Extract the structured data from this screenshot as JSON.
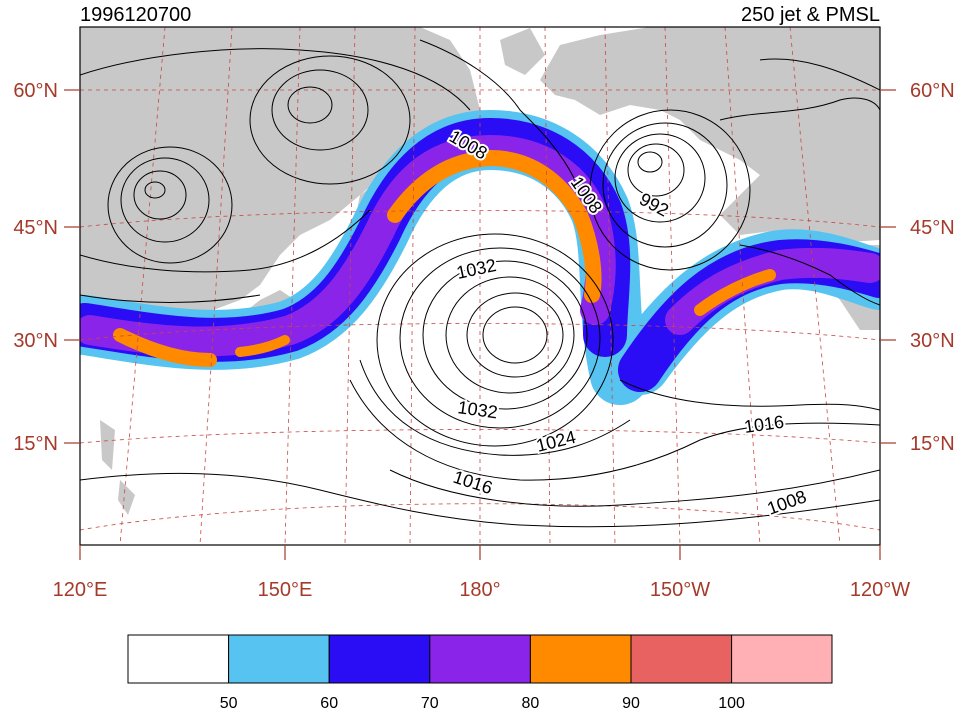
{
  "title_left": "1996120700",
  "title_right": "250 jet & PMSL",
  "lat_labels": [
    "60°N",
    "45°N",
    "30°N",
    "15°N"
  ],
  "lon_labels": [
    "120°E",
    "150°E",
    "180°",
    "150°W",
    "120°W"
  ],
  "contour_labels": [
    "1008",
    "1008",
    "992",
    "1032",
    "1032",
    "1024",
    "1016",
    "1016",
    "1008"
  ],
  "colorbar": {
    "levels": [
      "50",
      "60",
      "70",
      "80",
      "90",
      "100"
    ],
    "colors": [
      "#ffffff",
      "#56c3f0",
      "#2a0cf5",
      "#8a24e8",
      "#ff8a00",
      "#e86262",
      "#ffb0b4"
    ]
  },
  "colors": {
    "land": "#c8c8c8",
    "axis_label": "#a53a2a",
    "grid": "#c74848",
    "contour": "#000000"
  }
}
